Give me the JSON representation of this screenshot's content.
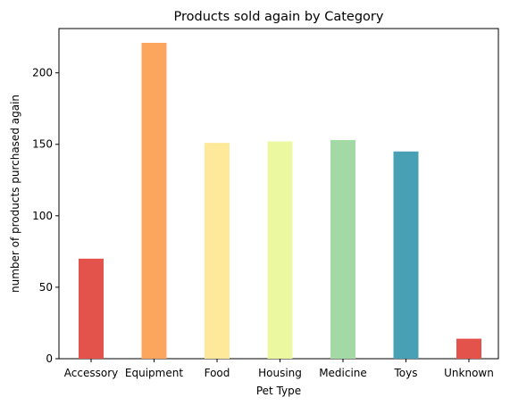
{
  "chart_data": {
    "type": "bar",
    "title": "Products sold again by Category",
    "xlabel": "Pet Type",
    "ylabel": "number of products purchased again",
    "categories": [
      "Accessory",
      "Equipment",
      "Food",
      "Housing",
      "Medicine",
      "Toys",
      "Unknown"
    ],
    "values": [
      70,
      221,
      151,
      152,
      153,
      145,
      14
    ],
    "colors": [
      "#e4534b",
      "#fca55d",
      "#fee899",
      "#ebf89f",
      "#a2d9a4",
      "#47a0b3",
      "#e4534b"
    ],
    "ylim": [
      0,
      231
    ],
    "yticks": [
      0,
      50,
      100,
      150,
      200
    ],
    "grid": false,
    "legend": "none"
  }
}
